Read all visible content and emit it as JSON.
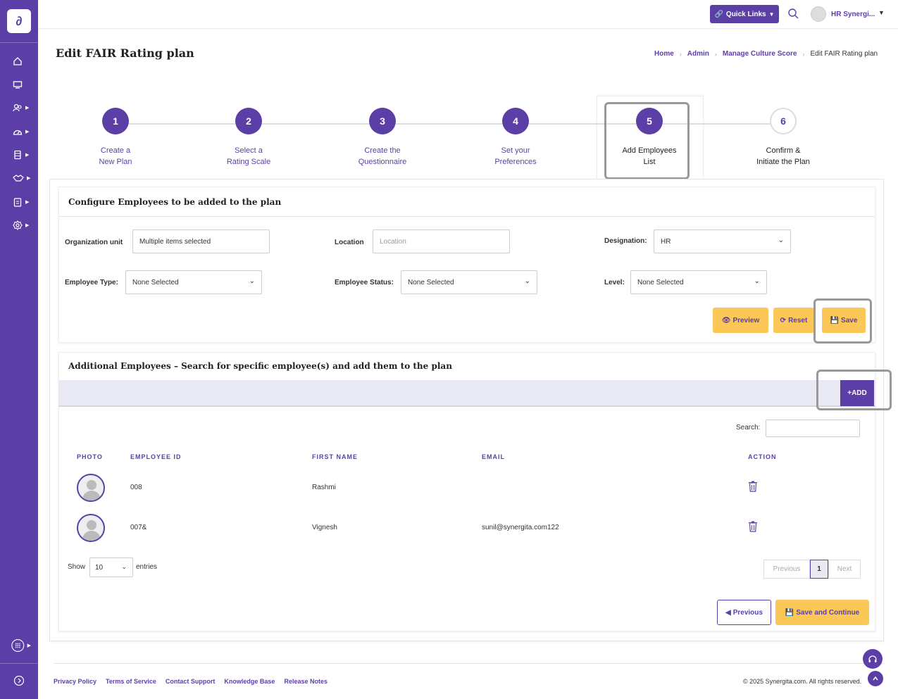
{
  "sidebar": {
    "logo": "∂",
    "icons": [
      "home-icon",
      "monitor-icon",
      "people-icon",
      "gauge-icon",
      "database-icon",
      "handshake-icon",
      "clipboard-icon",
      "gear-icon"
    ],
    "bottom_icons": [
      "apps-icon",
      "expand-icon"
    ]
  },
  "topbar": {
    "quick_links": "Quick Links",
    "user_name": "HR Synergi..."
  },
  "page": {
    "title": "Edit FAIR Rating plan"
  },
  "breadcrumb": {
    "items": [
      "Home",
      "Admin",
      "Manage Culture Score"
    ],
    "current": "Edit FAIR Rating plan"
  },
  "steps": [
    {
      "num": "1",
      "line1": "Create a",
      "line2": "New Plan"
    },
    {
      "num": "2",
      "line1": "Select a",
      "line2": "Rating Scale"
    },
    {
      "num": "3",
      "line1": "Create the",
      "line2": "Questionnaire"
    },
    {
      "num": "4",
      "line1": "Set your",
      "line2": "Preferences"
    },
    {
      "num": "5",
      "line1": "Add Employees",
      "line2": "List"
    },
    {
      "num": "6",
      "line1": "Confirm &",
      "line2": "Initiate the Plan"
    }
  ],
  "configure": {
    "title": "Configure Employees to be added to the plan",
    "org_unit_label": "Organization unit",
    "org_unit_value": "Multiple items selected",
    "location_label": "Location",
    "location_placeholder": "Location",
    "designation_label": "Designation:",
    "designation_value": "HR",
    "emp_type_label": "Employee Type:",
    "emp_type_value": "None Selected",
    "emp_status_label": "Employee Status:",
    "emp_status_value": "None Selected",
    "level_label": "Level:",
    "level_value": "None Selected",
    "preview": "Preview",
    "reset": "Reset",
    "save": "Save"
  },
  "additional": {
    "title": "Additional Employees – Search for specific employee(s) and add them to the plan",
    "add": "+ADD",
    "search_label": "Search:",
    "columns": [
      "PHOTO",
      "EMPLOYEE ID",
      "FIRST NAME",
      "EMAIL",
      "ACTION"
    ],
    "rows": [
      {
        "id": "008",
        "first_name": "Rashmi",
        "email": ""
      },
      {
        "id": "007&",
        "first_name": "Vignesh",
        "email": "sunil@synergita.com122"
      }
    ],
    "show": "Show",
    "show_value": "10",
    "entries": "entries",
    "previous_page": "Previous",
    "page": "1",
    "next_page": "Next",
    "previous_btn": "Previous",
    "save_continue": "Save and Continue"
  },
  "footer": {
    "links": [
      "Privacy Policy",
      "Terms of Service",
      "Contact Support",
      "Knowledge Base",
      "Release Notes"
    ],
    "copyright": "© 2025 Synergita.com. All rights reserved."
  }
}
